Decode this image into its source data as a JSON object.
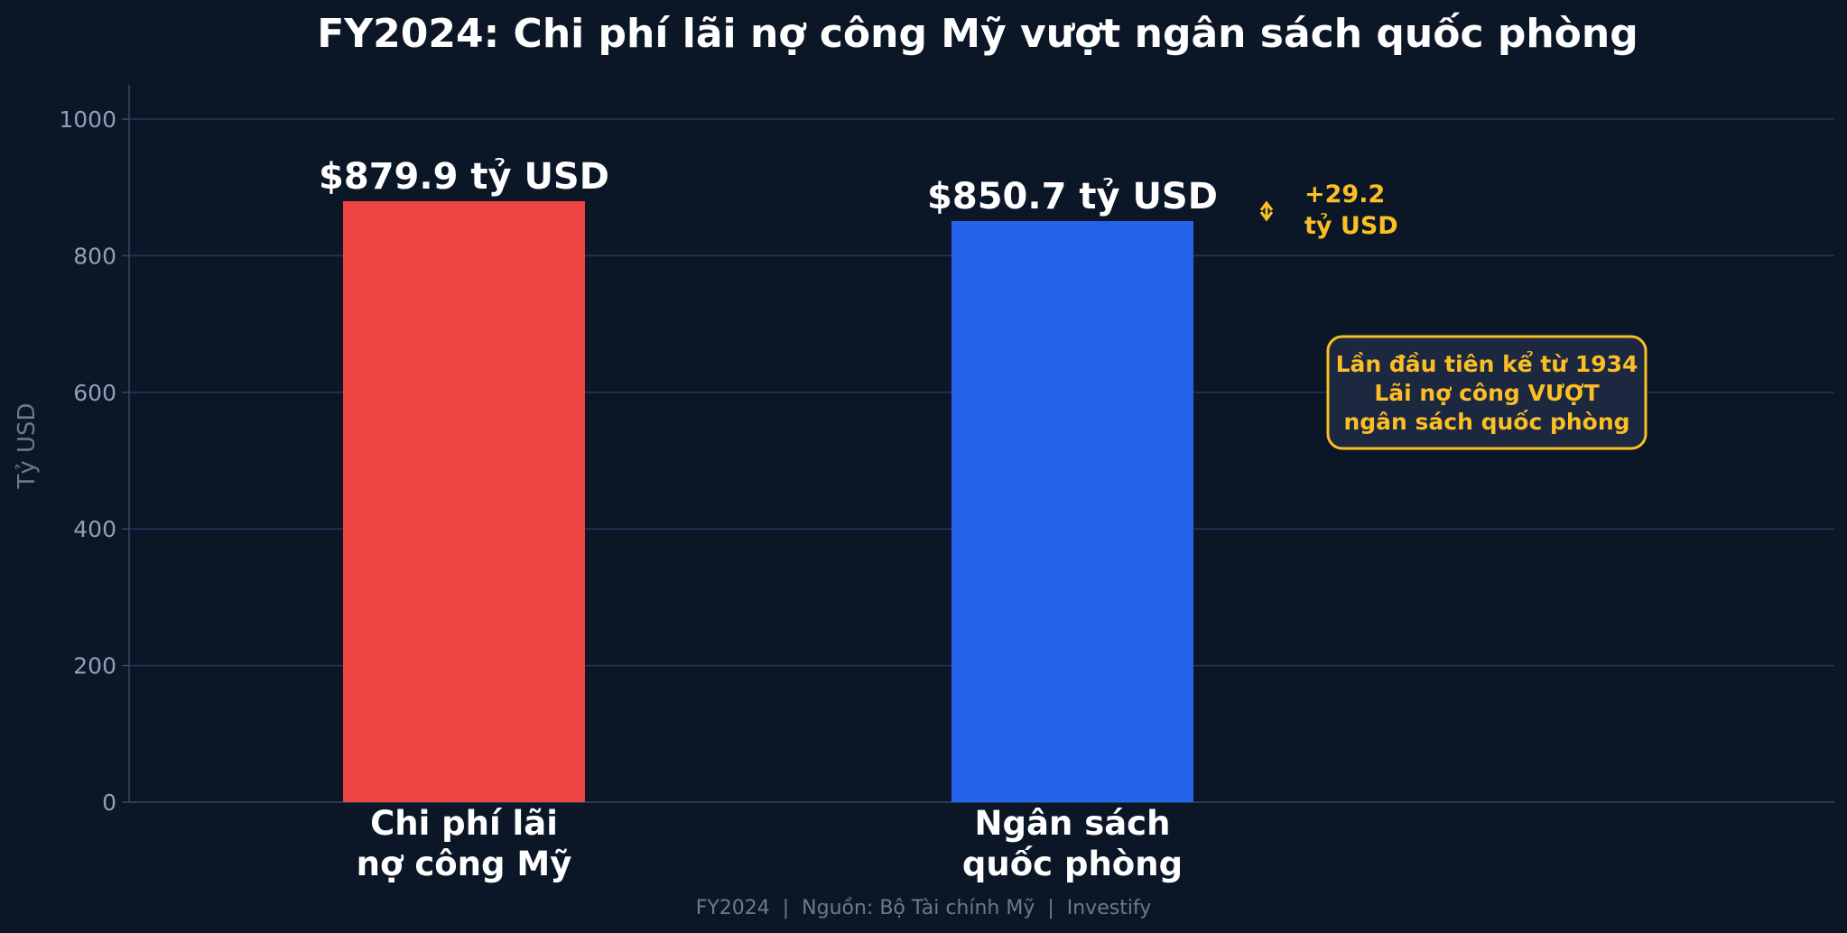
{
  "chart_data": {
    "type": "bar",
    "title": "FY2024: Chi phí lãi nợ công Mỹ vượt ngân sách quốc phòng",
    "xlabel": "",
    "ylabel": "Tỷ USD",
    "ylim": [
      0,
      1050
    ],
    "yticks": [
      0,
      200,
      400,
      600,
      800,
      1000
    ],
    "grid": true,
    "categories": [
      [
        "Chi phí lãi",
        "nợ công Mỹ"
      ],
      [
        "Ngân sách",
        "quốc phòng"
      ]
    ],
    "values": [
      879.9,
      850.7
    ],
    "value_labels": [
      "$879.9 tỷ USD",
      "$850.7 tỷ USD"
    ],
    "colors": [
      "#ef4444",
      "#2563eb"
    ],
    "difference": {
      "label_line1": "+29.2",
      "label_line2": "tỷ USD",
      "value": 29.2
    },
    "annotation_box": {
      "lines": [
        "Lần đầu tiên kể từ 1934",
        "Lãi nợ công VƯỢT",
        "ngân sách quốc phòng"
      ]
    },
    "source": "FY2024  |  Nguồn: Bộ Tài chính Mỹ  |  Investify",
    "accent_color": "#fbbf24",
    "background_color": "#0b1727",
    "gridline_color": "#1e3a5f"
  }
}
